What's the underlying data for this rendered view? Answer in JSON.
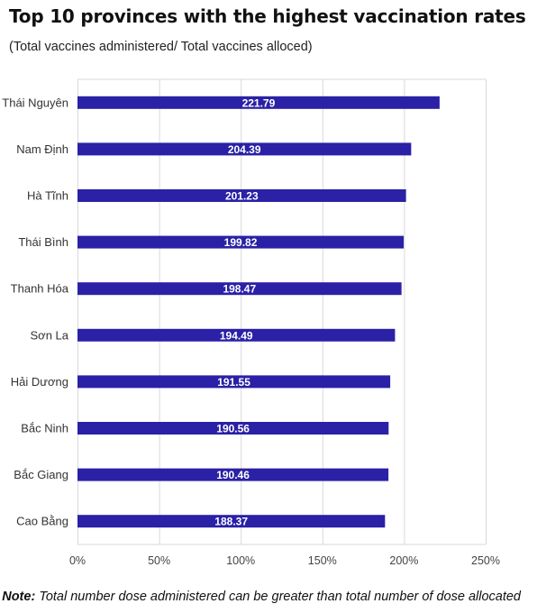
{
  "title": "Top 10 provinces with the highest vaccination rates",
  "subtitle": "(Total vaccines administered/ Total vaccines alloced)",
  "note": {
    "label": "Note:",
    "text": "Total number dose administered can be greater than total number of dose allocated"
  },
  "colors": {
    "bar": "#2a21a6",
    "grid": "#d9d9d9",
    "label_text": "#ffffff"
  },
  "chart_data": {
    "type": "bar",
    "orientation": "horizontal",
    "categories": [
      "Thái Nguyên",
      "Nam Định",
      "Hà Tĩnh",
      "Thái Bình",
      "Thanh Hóa",
      "Sơn La",
      "Hải Dương",
      "Bắc Ninh",
      "Bắc Giang",
      "Cao Bằng"
    ],
    "values": [
      221.79,
      204.39,
      201.23,
      199.82,
      198.47,
      194.49,
      191.55,
      190.56,
      190.46,
      188.37
    ],
    "data_labels": [
      "221.79",
      "204.39",
      "201.23",
      "199.82",
      "198.47",
      "194.49",
      "191.55",
      "190.56",
      "190.46",
      "188.37"
    ],
    "xlim": [
      0,
      250
    ],
    "xticks": [
      0,
      50,
      100,
      150,
      200,
      250
    ],
    "xtick_labels": [
      "0%",
      "50%",
      "100%",
      "150%",
      "200%",
      "250%"
    ],
    "xlabel": "",
    "ylabel": "",
    "grid": true,
    "legend": false
  }
}
